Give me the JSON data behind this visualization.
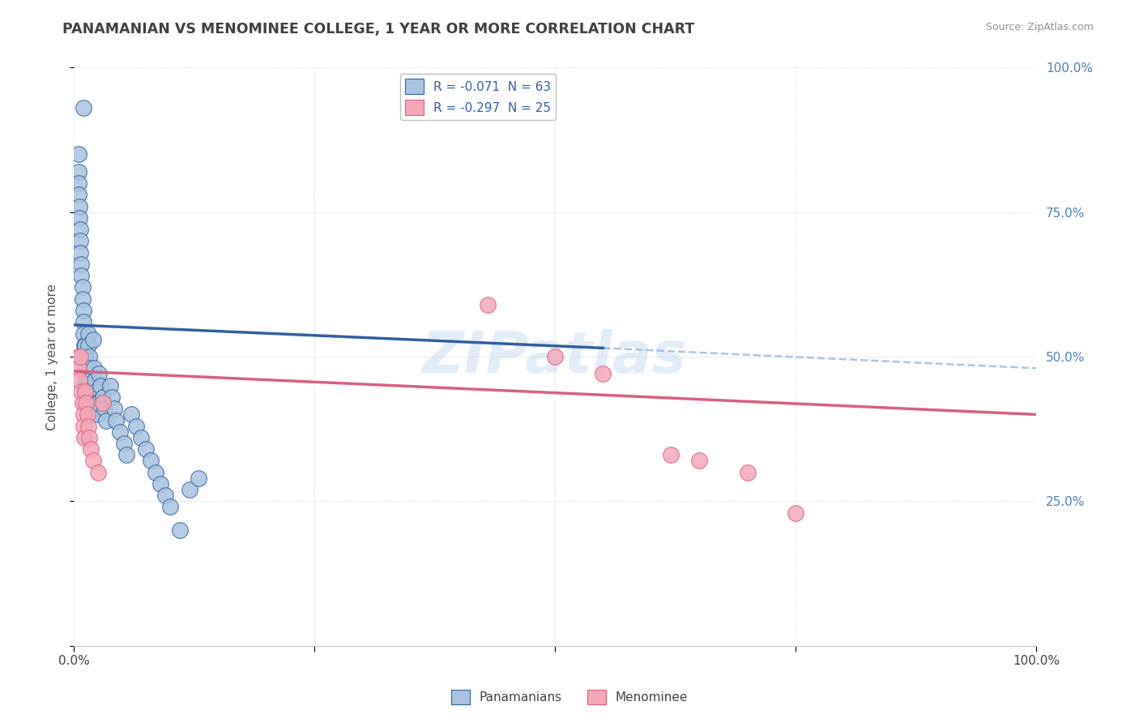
{
  "title": "PANAMANIAN VS MENOMINEE COLLEGE, 1 YEAR OR MORE CORRELATION CHART",
  "source": "Source: ZipAtlas.com",
  "ylabel": "College, 1 year or more",
  "watermark": "ZIPatlas",
  "legend_entry1": "R = -0.071  N = 63",
  "legend_entry2": "R = -0.297  N = 25",
  "legend_label1": "Panamanians",
  "legend_label2": "Menominee",
  "blue_scatter_x": [
    0.01,
    0.005,
    0.005,
    0.005,
    0.005,
    0.006,
    0.006,
    0.007,
    0.007,
    0.007,
    0.008,
    0.008,
    0.009,
    0.009,
    0.01,
    0.01,
    0.01,
    0.011,
    0.011,
    0.012,
    0.012,
    0.013,
    0.013,
    0.014,
    0.015,
    0.015,
    0.016,
    0.016,
    0.017,
    0.018,
    0.018,
    0.019,
    0.02,
    0.021,
    0.022,
    0.023,
    0.024,
    0.025,
    0.025,
    0.026,
    0.028,
    0.03,
    0.032,
    0.034,
    0.038,
    0.04,
    0.042,
    0.044,
    0.048,
    0.052,
    0.055,
    0.06,
    0.065,
    0.07,
    0.075,
    0.08,
    0.085,
    0.09,
    0.095,
    0.1,
    0.11,
    0.12,
    0.13
  ],
  "blue_scatter_y": [
    0.93,
    0.85,
    0.82,
    0.8,
    0.78,
    0.76,
    0.74,
    0.72,
    0.7,
    0.68,
    0.66,
    0.64,
    0.62,
    0.6,
    0.58,
    0.56,
    0.54,
    0.52,
    0.5,
    0.52,
    0.5,
    0.48,
    0.46,
    0.44,
    0.54,
    0.52,
    0.5,
    0.48,
    0.46,
    0.44,
    0.42,
    0.4,
    0.53,
    0.48,
    0.46,
    0.44,
    0.42,
    0.4,
    0.42,
    0.47,
    0.45,
    0.43,
    0.41,
    0.39,
    0.45,
    0.43,
    0.41,
    0.39,
    0.37,
    0.35,
    0.33,
    0.4,
    0.38,
    0.36,
    0.34,
    0.32,
    0.3,
    0.28,
    0.26,
    0.24,
    0.2,
    0.27,
    0.29
  ],
  "pink_scatter_x": [
    0.005,
    0.005,
    0.006,
    0.007,
    0.008,
    0.009,
    0.01,
    0.01,
    0.011,
    0.012,
    0.013,
    0.014,
    0.015,
    0.016,
    0.018,
    0.02,
    0.025,
    0.03,
    0.43,
    0.5,
    0.55,
    0.62,
    0.65,
    0.7,
    0.75
  ],
  "pink_scatter_y": [
    0.5,
    0.48,
    0.46,
    0.5,
    0.44,
    0.42,
    0.4,
    0.38,
    0.36,
    0.44,
    0.42,
    0.4,
    0.38,
    0.36,
    0.34,
    0.32,
    0.3,
    0.42,
    0.59,
    0.5,
    0.47,
    0.33,
    0.32,
    0.3,
    0.23
  ],
  "blue_line_x": [
    0.0,
    0.55
  ],
  "blue_line_y": [
    0.555,
    0.515
  ],
  "dash_line_x": [
    0.55,
    1.0
  ],
  "dash_line_y": [
    0.515,
    0.48
  ],
  "pink_line_x": [
    0.0,
    1.0
  ],
  "pink_line_y": [
    0.475,
    0.4
  ],
  "xlim": [
    0.0,
    1.0
  ],
  "ylim": [
    0.0,
    1.0
  ],
  "blue_color": "#a8c4e0",
  "blue_line_color": "#3060a0",
  "pink_color": "#f4a8b8",
  "pink_line_color": "#d86080",
  "dash_color": "#90b8d8",
  "background_color": "#ffffff",
  "grid_color": "#d0d0d0",
  "title_color": "#404040",
  "source_color": "#909090",
  "right_tick_color": "#5080b0",
  "legend_text_color": "#3060a0"
}
